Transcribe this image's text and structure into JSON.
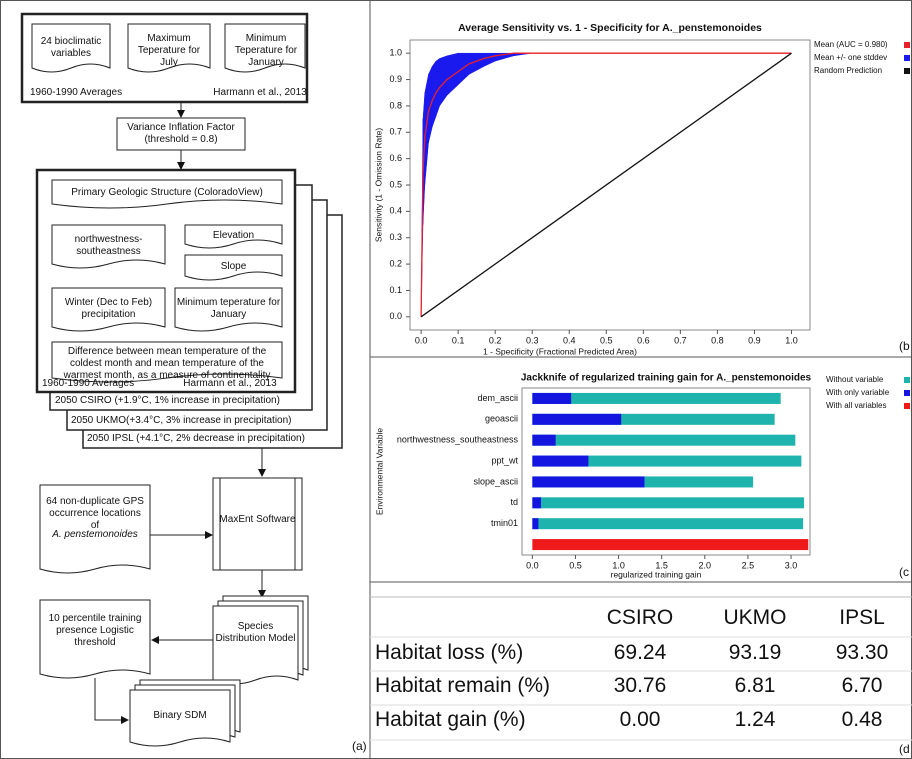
{
  "diagram": {
    "nodes": [
      "24 bioclimatic variables",
      "Maximum Teperature for July",
      "Minimum Teperature for January",
      "1960-1990 Averages",
      "Harmann et al., 2013",
      "Variance Inflation Factor (threshold = 0.8)",
      "Primary Geologic Structure (ColoradoView)",
      "northwestness-southeastness",
      "Elevation",
      "Slope",
      "Winter (Dec to Feb) precipitation",
      "Minimum teperature for January",
      "Difference between mean temperature of the coldest month and mean temperature of the warmest month, as a measure of continentality",
      "1960-1990 Averages",
      "Harmann et al., 2013",
      "2050 CSIRO (+1.9°C, 1% increase in precipitation)",
      "2050 UKMO(+3.4°C, 3% increase in precipitation)",
      "2050 IPSL (+4.1°C, 2% decrease in precipitation)",
      "64 non-duplicate GPS occurrence locations of",
      "A. penstemonoides",
      "MaxEnt Software",
      "Species Distribution Model",
      "10 percentile training presence Logistic threshold",
      "Binary SDM"
    ],
    "panel_label": "(a)"
  },
  "chart_data": [
    {
      "type": "line",
      "title": "Average Sensitivity vs. 1 - Specificity for A._penstemonoides",
      "x_label": "1 - Specificity (Fractional Predicted Area)",
      "y_label": "Sensitivity (1 - Omission Rate)",
      "panel_label": "(b",
      "xlim": [
        -0.03,
        1.05
      ],
      "ylim": [
        -0.05,
        1.05
      ],
      "xticks": [
        {
          "value": 0,
          "label": "0.0"
        },
        0.1,
        0.2,
        0.3,
        0.4,
        0.5,
        0.6,
        0.7,
        0.8,
        0.9,
        {
          "value": 1,
          "label": "1.0"
        }
      ],
      "yticks": [
        {
          "value": 0,
          "label": "0.0"
        },
        0.1,
        0.2,
        0.3,
        0.4,
        0.5,
        0.6,
        0.7,
        0.8,
        0.9,
        {
          "value": 1,
          "label": "1.0"
        }
      ],
      "series": [
        {
          "name": "Mean (AUC = 0.980)",
          "color": "#e8202a",
          "x": [
            0,
            0.005,
            0.01,
            0.02,
            0.03,
            0.04,
            0.05,
            0.07,
            0.1,
            0.13,
            0.17,
            0.2,
            0.25,
            0.3,
            1.0
          ],
          "values": [
            0,
            0.55,
            0.68,
            0.78,
            0.82,
            0.85,
            0.87,
            0.9,
            0.93,
            0.96,
            0.98,
            0.99,
            1.0,
            1.0,
            1.0
          ]
        },
        {
          "name": "Mean +/- one stddev",
          "color": "#1a1aee",
          "x": [
            0,
            0.005,
            0.01,
            0.02,
            0.03,
            0.04,
            0.05,
            0.07,
            0.1,
            0.13,
            0.17,
            0.2,
            0.25,
            0.3,
            1.0
          ],
          "lower": [
            0,
            0.35,
            0.5,
            0.66,
            0.72,
            0.76,
            0.8,
            0.84,
            0.88,
            0.92,
            0.95,
            0.97,
            0.99,
            1.0,
            1.0
          ],
          "upper": [
            0,
            0.75,
            0.85,
            0.92,
            0.95,
            0.97,
            0.98,
            0.99,
            1.0,
            1.0,
            1.0,
            1.0,
            1.0,
            1.0,
            1.0
          ]
        },
        {
          "name": "Random Prediction",
          "color": "#111111",
          "x": [
            0,
            1.0
          ],
          "values": [
            0,
            1.0
          ]
        }
      ]
    },
    {
      "type": "bar",
      "orientation": "horizontal",
      "title": "Jackknife of regularized training gain for A._penstemonoides",
      "x_label": "regularized training gain",
      "y_label": "Environmental Variable",
      "panel_label": "(c",
      "xlim": [
        -0.12,
        3.22
      ],
      "xticks": [
        {
          "value": 0,
          "label": "0.0"
        },
        0.5,
        {
          "value": 1,
          "label": "1.0"
        },
        1.5,
        {
          "value": 2,
          "label": "2.0"
        },
        2.5,
        {
          "value": 3,
          "label": "3.0"
        }
      ],
      "categories": [
        "dem_ascii",
        "geoascii",
        "northwestness_southeastness",
        "ppt_wt",
        "slope_ascii",
        "td",
        "tmin01",
        null
      ],
      "series": [
        {
          "name": "Without variable",
          "color": "#1fb3ad",
          "values": [
            2.88,
            2.81,
            3.05,
            3.12,
            2.56,
            3.15,
            3.14,
            null
          ]
        },
        {
          "name": "With only variable",
          "color": "#1515e0",
          "values": [
            0.45,
            1.03,
            0.27,
            0.65,
            1.3,
            0.1,
            0.07,
            null
          ]
        },
        {
          "name": "With all variables",
          "color": "#ee1a1a",
          "values": [
            null,
            null,
            null,
            null,
            null,
            null,
            null,
            3.2
          ]
        }
      ]
    }
  ],
  "table": {
    "header": [
      "CSIRO",
      "UKMO",
      "IPSL"
    ],
    "rows": [
      [
        "Habitat loss (%)",
        "69.24",
        "93.19",
        "93.30"
      ],
      [
        "Habitat remain (%)",
        "30.76",
        "6.81",
        "6.70"
      ],
      [
        "Habitat gain (%)",
        "0.00",
        "1.24",
        "0.48"
      ]
    ],
    "panel_label": "(d"
  }
}
